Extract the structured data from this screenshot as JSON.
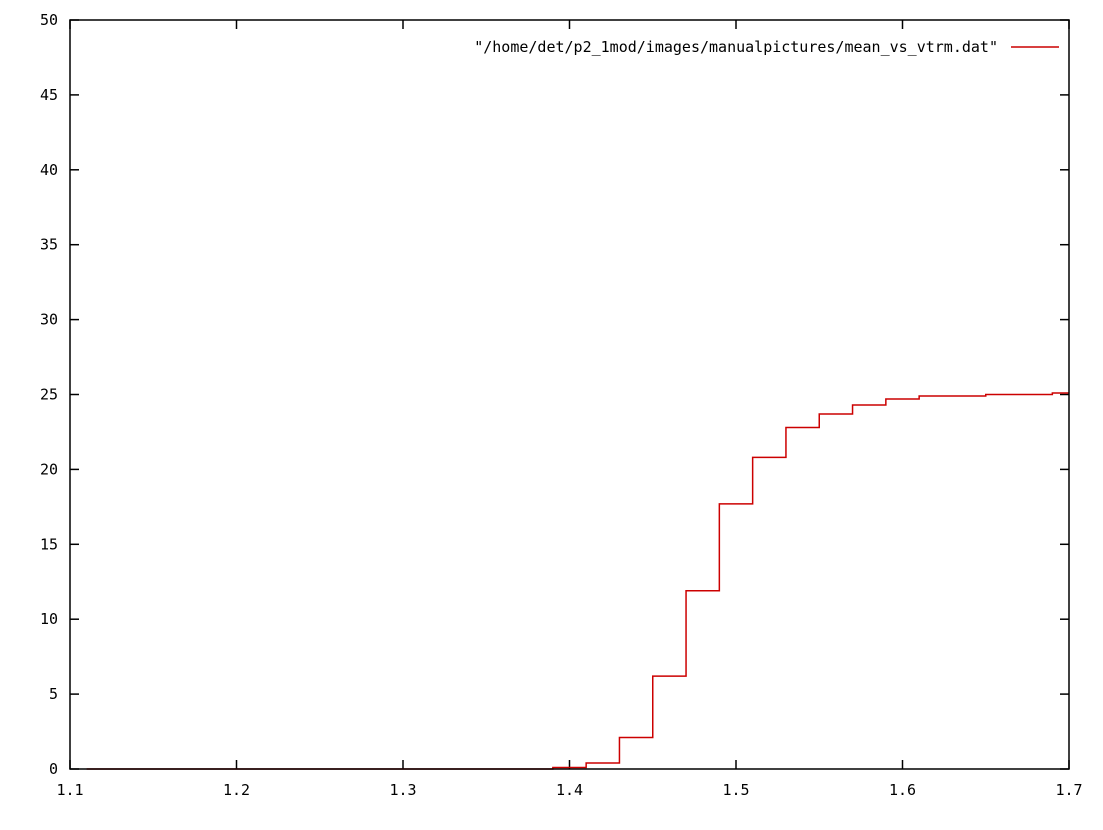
{
  "chart_data": {
    "type": "line",
    "style": "steps",
    "title": "",
    "xlabel": "",
    "ylabel": "",
    "xlim": [
      1.1,
      1.7
    ],
    "ylim": [
      0,
      50
    ],
    "grid": false,
    "legend_position": "top-right",
    "x_ticks": [
      "1.1",
      "1.2",
      "1.3",
      "1.4",
      "1.5",
      "1.6",
      "1.7"
    ],
    "x_tick_values": [
      1.1,
      1.2,
      1.3,
      1.4,
      1.5,
      1.6,
      1.7
    ],
    "y_ticks": [
      "0",
      "5",
      "10",
      "15",
      "20",
      "25",
      "30",
      "35",
      "40",
      "45",
      "50"
    ],
    "y_tick_values": [
      0,
      5,
      10,
      15,
      20,
      25,
      30,
      35,
      40,
      45,
      50
    ],
    "series": [
      {
        "name": "\"/home/det/p2_1mod/images/manualpictures/mean_vs_vtrm.dat\"",
        "color": "#cc0000",
        "x": [
          1.11,
          1.27,
          1.39,
          1.41,
          1.43,
          1.45,
          1.47,
          1.49,
          1.51,
          1.53,
          1.55,
          1.57,
          1.59,
          1.61,
          1.63,
          1.65,
          1.67,
          1.69,
          1.7
        ],
        "y": [
          0,
          0,
          0.1,
          0.4,
          2.1,
          6.2,
          11.9,
          17.7,
          20.8,
          22.8,
          23.7,
          24.3,
          24.7,
          24.9,
          24.9,
          25.0,
          25.0,
          25.1,
          25.1
        ]
      }
    ]
  }
}
